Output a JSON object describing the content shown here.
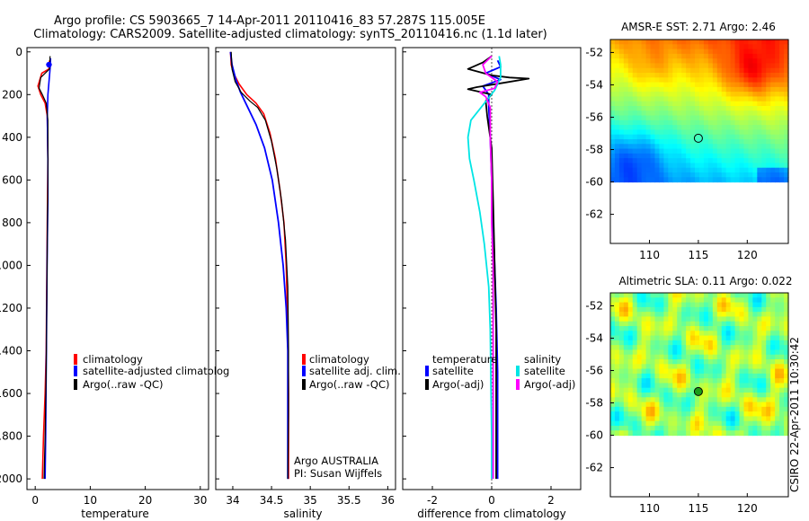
{
  "header": {
    "title_line1": "Argo profile: CS 5903665_7 14-Apr-2011 20110416_83 57.287S 115.005E",
    "title_line2": "Climatology: CARS2009. Satellite-adjusted climatology: synTS_20110416.nc (1.1d later)"
  },
  "credit": {
    "institution": "Argo AUSTRALIA",
    "pi": "PI: Susan Wijffels",
    "stamp": "CSIRO 22-Apr-2011 10:30:42"
  },
  "colors": {
    "red": "#ff0000",
    "blue": "#0000ff",
    "black": "#000000",
    "cyan": "#00e5e5",
    "magenta": "#ff00ff"
  },
  "chart_data": [
    {
      "id": "temperature",
      "type": "line",
      "xlabel": "temperature",
      "ylabel": "",
      "xlim": [
        -1.5,
        31.5
      ],
      "ylim": [
        2050,
        -20
      ],
      "xticks": [
        0,
        10,
        20,
        30
      ],
      "yticks": [
        0,
        200,
        400,
        600,
        800,
        1000,
        1200,
        1400,
        1600,
        1800,
        2000
      ],
      "legend": [
        "climatology",
        "satellite-adjusted climatolog",
        "Argo(..raw -QC)"
      ],
      "series": [
        {
          "name": "climatology",
          "color": "red",
          "width": 1.6,
          "points": [
            [
              2.6,
              40
            ],
            [
              2.5,
              80
            ],
            [
              1.2,
              100
            ],
            [
              0.5,
              160
            ],
            [
              1.0,
              200
            ],
            [
              1.8,
              240
            ],
            [
              2.2,
              300
            ],
            [
              2.3,
              500
            ],
            [
              2.2,
              800
            ],
            [
              2.1,
              1100
            ],
            [
              2.0,
              1400
            ],
            [
              1.8,
              1600
            ],
            [
              1.5,
              1800
            ],
            [
              1.3,
              2000
            ]
          ]
        },
        {
          "name": "satellite",
          "color": "blue",
          "width": 1.6,
          "points": [
            [
              2.8,
              30
            ],
            [
              2.7,
              80
            ],
            [
              2.5,
              140
            ],
            [
              2.3,
              200
            ],
            [
              2.2,
              300
            ],
            [
              2.3,
              500
            ],
            [
              2.3,
              700
            ],
            [
              2.2,
              900
            ],
            [
              2.1,
              1200
            ],
            [
              2.0,
              1500
            ],
            [
              1.9,
              1800
            ],
            [
              1.8,
              2000
            ]
          ]
        },
        {
          "name": "argo",
          "color": "black",
          "width": 1.2,
          "points": [
            [
              2.7,
              20
            ],
            [
              2.6,
              80
            ],
            [
              1.0,
              120
            ],
            [
              0.7,
              170
            ],
            [
              1.3,
              200
            ],
            [
              2.0,
              240
            ],
            [
              2.3,
              320
            ],
            [
              2.3,
              600
            ],
            [
              2.2,
              900
            ],
            [
              2.1,
              1200
            ],
            [
              2.0,
              1500
            ],
            [
              1.8,
              1800
            ],
            [
              1.6,
              2000
            ]
          ]
        }
      ],
      "markers": [
        {
          "x": 2.5,
          "y": 60,
          "color": "blue"
        }
      ]
    },
    {
      "id": "salinity",
      "type": "line",
      "xlabel": "salinity",
      "ylabel": "",
      "xlim": [
        33.78,
        36.1
      ],
      "ylim": [
        2050,
        -20
      ],
      "xticks": [
        34,
        34.5,
        35,
        35.5,
        36
      ],
      "yticks": [],
      "legend": [
        "climatology",
        "satellite adj. clim.",
        "Argo(..raw -QC)"
      ],
      "series": [
        {
          "name": "climatology",
          "color": "red",
          "width": 1.6,
          "points": [
            [
              33.97,
              0
            ],
            [
              33.98,
              60
            ],
            [
              34.01,
              100
            ],
            [
              34.08,
              150
            ],
            [
              34.18,
              200
            ],
            [
              34.3,
              240
            ],
            [
              34.4,
              290
            ],
            [
              34.48,
              380
            ],
            [
              34.55,
              500
            ],
            [
              34.61,
              650
            ],
            [
              34.66,
              800
            ],
            [
              34.69,
              1000
            ],
            [
              34.71,
              1300
            ],
            [
              34.72,
              1600
            ],
            [
              34.72,
              1800
            ],
            [
              34.72,
              2000
            ]
          ]
        },
        {
          "name": "satellite",
          "color": "blue",
          "width": 1.8,
          "points": [
            [
              33.97,
              0
            ],
            [
              33.99,
              60
            ],
            [
              34.04,
              130
            ],
            [
              34.1,
              190
            ],
            [
              34.18,
              250
            ],
            [
              34.3,
              340
            ],
            [
              34.41,
              450
            ],
            [
              34.51,
              600
            ],
            [
              34.59,
              800
            ],
            [
              34.65,
              1000
            ],
            [
              34.69,
              1200
            ],
            [
              34.71,
              1400
            ],
            [
              34.71,
              1600
            ],
            [
              34.71,
              1800
            ],
            [
              34.71,
              2000
            ]
          ]
        },
        {
          "name": "argo",
          "color": "black",
          "width": 1.2,
          "points": [
            [
              33.98,
              0
            ],
            [
              33.99,
              80
            ],
            [
              34.03,
              140
            ],
            [
              34.11,
              190
            ],
            [
              34.22,
              230
            ],
            [
              34.32,
              260
            ],
            [
              34.42,
              320
            ],
            [
              34.5,
              420
            ],
            [
              34.57,
              550
            ],
            [
              34.63,
              700
            ],
            [
              34.68,
              880
            ],
            [
              34.71,
              1100
            ],
            [
              34.72,
              1400
            ],
            [
              34.72,
              1700
            ],
            [
              34.71,
              2000
            ]
          ]
        }
      ]
    },
    {
      "id": "difference",
      "type": "line",
      "xlabel": "difference from climatology",
      "ylabel": "",
      "xlim": [
        -3.0,
        3.0
      ],
      "ylim": [
        2050,
        -20
      ],
      "xticks": [
        -2,
        0,
        2
      ],
      "yticks": [],
      "zero_line": true,
      "legend_titles": [
        "temperature",
        "salinity"
      ],
      "legend": [
        "satellite",
        "Argo(-adj)",
        "satellite",
        "Argo(-adj)"
      ],
      "series": [
        {
          "name": "temp-satellite",
          "color": "blue",
          "width": 1.8,
          "points": [
            [
              0.2,
              40
            ],
            [
              0.3,
              70
            ],
            [
              -0.2,
              100
            ],
            [
              0.3,
              130
            ],
            [
              -0.3,
              160
            ],
            [
              -0.1,
              200
            ],
            [
              -0.1,
              260
            ],
            [
              -0.05,
              400
            ],
            [
              0.0,
              600
            ],
            [
              0.05,
              800
            ],
            [
              0.1,
              1000
            ],
            [
              0.15,
              1200
            ],
            [
              0.2,
              1500
            ],
            [
              0.2,
              1800
            ],
            [
              0.2,
              2000
            ]
          ]
        },
        {
          "name": "temp-argo",
          "color": "black",
          "width": 1.8,
          "points": [
            [
              0.0,
              20
            ],
            [
              -0.3,
              50
            ],
            [
              -0.8,
              80
            ],
            [
              0.0,
              110
            ],
            [
              0.6,
              120
            ],
            [
              1.25,
              125
            ],
            [
              0.4,
              145
            ],
            [
              -0.5,
              165
            ],
            [
              -0.8,
              175
            ],
            [
              0.0,
              200
            ],
            [
              -0.2,
              230
            ],
            [
              -0.15,
              300
            ],
            [
              0.0,
              450
            ],
            [
              0.05,
              700
            ],
            [
              0.1,
              1000
            ],
            [
              0.15,
              1300
            ],
            [
              0.15,
              1600
            ],
            [
              0.15,
              2000
            ]
          ]
        },
        {
          "name": "sal-satellite",
          "color": "cyan",
          "width": 1.8,
          "points": [
            [
              0.25,
              20
            ],
            [
              0.3,
              60
            ],
            [
              0.3,
              120
            ],
            [
              0.1,
              180
            ],
            [
              -0.3,
              250
            ],
            [
              -0.7,
              320
            ],
            [
              -0.8,
              400
            ],
            [
              -0.75,
              500
            ],
            [
              -0.6,
              600
            ],
            [
              -0.4,
              750
            ],
            [
              -0.25,
              900
            ],
            [
              -0.1,
              1100
            ],
            [
              -0.05,
              1300
            ],
            [
              -0.02,
              1600
            ],
            [
              0.0,
              1800
            ],
            [
              0.0,
              2000
            ]
          ]
        },
        {
          "name": "sal-argo",
          "color": "magenta",
          "width": 1.8,
          "points": [
            [
              0.0,
              20
            ],
            [
              -0.3,
              60
            ],
            [
              -0.2,
              100
            ],
            [
              0.2,
              140
            ],
            [
              0.1,
              170
            ],
            [
              -0.4,
              190
            ],
            [
              -0.2,
              210
            ],
            [
              -0.05,
              260
            ],
            [
              -0.05,
              400
            ],
            [
              0.0,
              600
            ],
            [
              0.0,
              800
            ],
            [
              0.05,
              1000
            ],
            [
              0.05,
              1300
            ],
            [
              0.05,
              1600
            ],
            [
              0.05,
              2000
            ]
          ]
        }
      ]
    },
    {
      "id": "sst-map",
      "type": "heatmap",
      "title": "AMSR-E SST: 2.71  Argo: 2.46",
      "xlim": [
        106.0,
        124.2
      ],
      "ylim": [
        -63.8,
        -51.2
      ],
      "xticks": [
        110,
        115,
        120
      ],
      "yticks": [
        -52,
        -54,
        -56,
        -58,
        -60,
        -62
      ],
      "data_lat_range": [
        -60.0,
        -51.2
      ],
      "argo_position": {
        "lon": 115.0,
        "lat": -57.3
      },
      "colormap": "jet",
      "value_range": [
        0.5,
        6.5
      ],
      "field_mean": 3.2
    },
    {
      "id": "sla-map",
      "type": "heatmap",
      "title": "Altimetric SLA: 0.11  Argo: 0.022",
      "xlim": [
        106.0,
        124.2
      ],
      "ylim": [
        -63.8,
        -51.2
      ],
      "xticks": [
        110,
        115,
        120
      ],
      "yticks": [
        -52,
        -54,
        -56,
        -58,
        -60,
        -62
      ],
      "data_lat_range": [
        -60.0,
        -51.2
      ],
      "argo_position": {
        "lon": 115.0,
        "lat": -57.3
      },
      "colormap": "jet",
      "value_range": [
        -0.3,
        0.3
      ],
      "field_mean": 0.05
    }
  ]
}
